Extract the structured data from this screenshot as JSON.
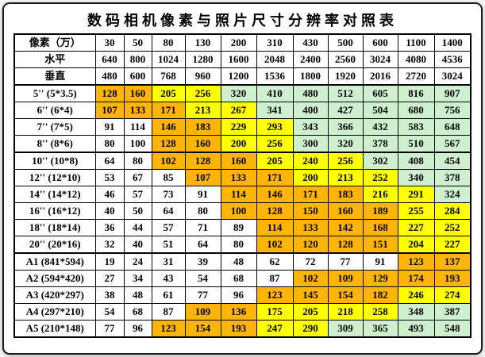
{
  "title": "数码相机像素与照片尺寸分辨率对照表",
  "colors": {
    "orange": "#FFB508",
    "yellow": "#FFFF00",
    "green": "#CFF0CF",
    "white": "#FFFFFF"
  },
  "table": {
    "header": {
      "pixel_label": "像素（万）",
      "pixels": [
        "30",
        "50",
        "80",
        "130",
        "200",
        "310",
        "430",
        "500",
        "600",
        "1100",
        "1400"
      ],
      "horizontal_label": "水平",
      "horizontal": [
        "640",
        "800",
        "1024",
        "1280",
        "1600",
        "2048",
        "2400",
        "2560",
        "3024",
        "4080",
        "4536"
      ],
      "vertical_label": "垂直",
      "vertical": [
        "480",
        "600",
        "768",
        "960",
        "1200",
        "1536",
        "1800",
        "1920",
        "2016",
        "2720",
        "3024"
      ]
    },
    "rows": [
      {
        "label": "5'' (5*3.5)",
        "values": [
          "128",
          "160",
          "205",
          "256",
          "320",
          "410",
          "480",
          "512",
          "605",
          "816",
          "907"
        ],
        "colors": [
          "o",
          "o",
          "y",
          "y",
          "g",
          "g",
          "g",
          "g",
          "g",
          "g",
          "g"
        ]
      },
      {
        "label": "6'' (6*4)",
        "values": [
          "107",
          "133",
          "171",
          "213",
          "267",
          "341",
          "400",
          "427",
          "504",
          "680",
          "756"
        ],
        "colors": [
          "o",
          "o",
          "o",
          "y",
          "y",
          "g",
          "g",
          "g",
          "g",
          "g",
          "g"
        ]
      },
      {
        "label": "7'' (7*5)",
        "values": [
          "91",
          "114",
          "146",
          "183",
          "229",
          "293",
          "343",
          "366",
          "432",
          "583",
          "648"
        ],
        "colors": [
          "w",
          "w",
          "o",
          "o",
          "y",
          "y",
          "g",
          "g",
          "g",
          "g",
          "g"
        ]
      },
      {
        "label": "8'' (8*6)",
        "values": [
          "80",
          "100",
          "128",
          "160",
          "200",
          "256",
          "300",
          "320",
          "378",
          "510",
          "567"
        ],
        "colors": [
          "w",
          "w",
          "o",
          "o",
          "y",
          "y",
          "g",
          "g",
          "g",
          "g",
          "g"
        ]
      },
      {
        "label": "10'' (10*8)",
        "values": [
          "64",
          "80",
          "102",
          "128",
          "160",
          "205",
          "240",
          "256",
          "302",
          "408",
          "454"
        ],
        "colors": [
          "w",
          "w",
          "o",
          "o",
          "o",
          "y",
          "y",
          "y",
          "g",
          "g",
          "g"
        ]
      },
      {
        "label": "12'' (12*10)",
        "values": [
          "53",
          "67",
          "85",
          "107",
          "133",
          "171",
          "200",
          "213",
          "252",
          "340",
          "378"
        ],
        "colors": [
          "w",
          "w",
          "w",
          "o",
          "o",
          "o",
          "y",
          "y",
          "y",
          "g",
          "g"
        ]
      },
      {
        "label": "14'' (14*12)",
        "values": [
          "46",
          "57",
          "73",
          "91",
          "114",
          "146",
          "171",
          "183",
          "216",
          "291",
          "324"
        ],
        "colors": [
          "w",
          "w",
          "w",
          "w",
          "o",
          "o",
          "o",
          "o",
          "y",
          "y",
          "g"
        ]
      },
      {
        "label": "16'' (16*12)",
        "values": [
          "40",
          "50",
          "64",
          "80",
          "100",
          "128",
          "150",
          "160",
          "189",
          "255",
          "284"
        ],
        "colors": [
          "w",
          "w",
          "w",
          "w",
          "o",
          "o",
          "o",
          "o",
          "o",
          "y",
          "y"
        ]
      },
      {
        "label": "18'' (18*14)",
        "values": [
          "36",
          "44",
          "57",
          "71",
          "89",
          "114",
          "133",
          "142",
          "168",
          "227",
          "252"
        ],
        "colors": [
          "w",
          "w",
          "w",
          "w",
          "w",
          "o",
          "o",
          "o",
          "o",
          "y",
          "y"
        ]
      },
      {
        "label": "20'' (20*16)",
        "values": [
          "32",
          "40",
          "51",
          "64",
          "80",
          "102",
          "120",
          "128",
          "151",
          "204",
          "227"
        ],
        "colors": [
          "w",
          "w",
          "w",
          "w",
          "w",
          "o",
          "o",
          "o",
          "o",
          "y",
          "y"
        ]
      },
      {
        "label": "A1 (841*594)",
        "values": [
          "19",
          "24",
          "31",
          "39",
          "48",
          "62",
          "72",
          "77",
          "91",
          "123",
          "137"
        ],
        "colors": [
          "w",
          "w",
          "w",
          "w",
          "w",
          "w",
          "w",
          "w",
          "w",
          "o",
          "o"
        ]
      },
      {
        "label": "A2 (594*420)",
        "values": [
          "27",
          "34",
          "43",
          "54",
          "68",
          "87",
          "102",
          "109",
          "129",
          "174",
          "193"
        ],
        "colors": [
          "w",
          "w",
          "w",
          "w",
          "w",
          "w",
          "o",
          "o",
          "o",
          "o",
          "o"
        ]
      },
      {
        "label": "A3 (420*297)",
        "values": [
          "38",
          "48",
          "61",
          "77",
          "96",
          "123",
          "145",
          "154",
          "182",
          "246",
          "274"
        ],
        "colors": [
          "w",
          "w",
          "w",
          "w",
          "w",
          "o",
          "o",
          "o",
          "o",
          "y",
          "y"
        ]
      },
      {
        "label": "A4 (297*210)",
        "values": [
          "54",
          "68",
          "87",
          "109",
          "136",
          "175",
          "205",
          "218",
          "258",
          "348",
          "387"
        ],
        "colors": [
          "w",
          "w",
          "w",
          "o",
          "o",
          "y",
          "y",
          "y",
          "y",
          "g",
          "g"
        ]
      },
      {
        "label": "A5 (210*148)",
        "values": [
          "77",
          "96",
          "123",
          "154",
          "193",
          "247",
          "290",
          "309",
          "365",
          "493",
          "548"
        ],
        "colors": [
          "w",
          "w",
          "o",
          "o",
          "o",
          "y",
          "y",
          "g",
          "g",
          "g",
          "g"
        ]
      }
    ]
  }
}
